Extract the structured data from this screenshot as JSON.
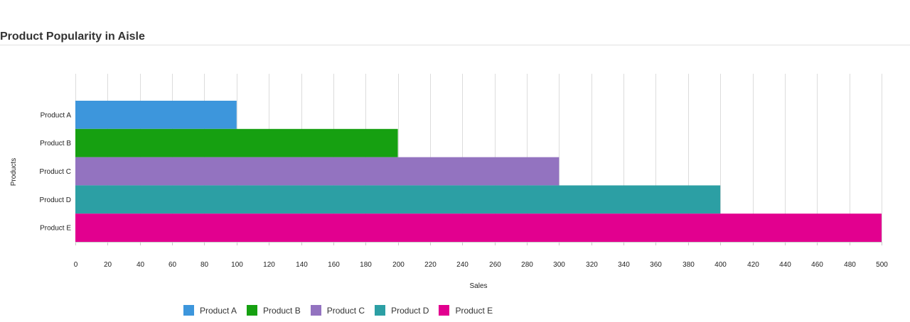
{
  "header": {
    "title": "Product Popularity in Aisle"
  },
  "chart_data": {
    "type": "bar",
    "orientation": "horizontal",
    "categories": [
      "Product A",
      "Product B",
      "Product C",
      "Product D",
      "Product E"
    ],
    "values": [
      100,
      200,
      300,
      400,
      500
    ],
    "colors": [
      "#3d96dc",
      "#16a011",
      "#9373c0",
      "#2c9fa4",
      "#e2008f"
    ],
    "title": "Product Popularity in Aisle",
    "xlabel": "Sales",
    "ylabel": "Products",
    "xlim": [
      0,
      500
    ],
    "x_tick_step": 20,
    "grid": true,
    "legend": {
      "placement": "bottom-left",
      "entries": [
        "Product A",
        "Product B",
        "Product C",
        "Product D",
        "Product E"
      ]
    }
  }
}
